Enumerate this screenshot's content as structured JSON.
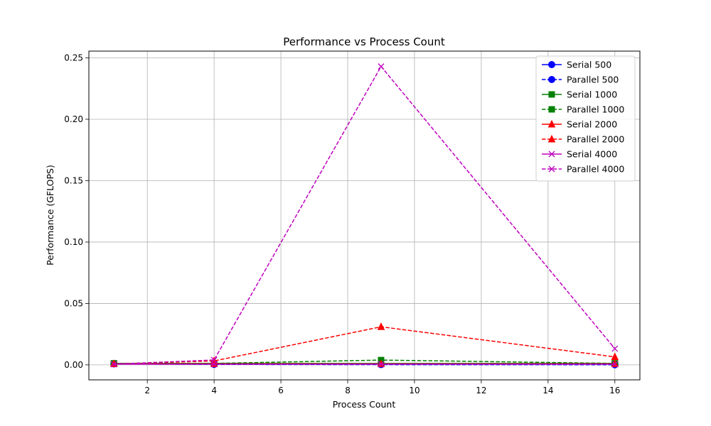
{
  "chart_data": {
    "type": "line",
    "title": "Performance vs Process Count",
    "xlabel": "Process Count",
    "ylabel": "Performance (GFLOPS)",
    "xlim": [
      0.25,
      16.75
    ],
    "ylim": [
      -0.0122,
      0.2555
    ],
    "xticks": [
      2,
      4,
      6,
      8,
      10,
      12,
      14,
      16
    ],
    "yticks": [
      0.0,
      0.05,
      0.1,
      0.15,
      0.2,
      0.25
    ],
    "ytick_labels": [
      "0.00",
      "0.05",
      "0.10",
      "0.15",
      "0.20",
      "0.25"
    ],
    "grid": true,
    "legend_position": "top-right",
    "x": [
      1,
      4,
      9,
      16
    ],
    "series": [
      {
        "name": "Serial 500",
        "color": "#0000ff",
        "line": "solid",
        "marker": "circle",
        "values": [
          0.0008,
          0.0008,
          0.0008,
          0.0008
        ]
      },
      {
        "name": "Parallel 500",
        "color": "#0000ff",
        "line": "dashed",
        "marker": "circle",
        "values": [
          0.0008,
          0.0004,
          0.0002,
          0.0001
        ]
      },
      {
        "name": "Serial 1000",
        "color": "#008000",
        "line": "solid",
        "marker": "square",
        "values": [
          0.0012,
          0.0012,
          0.0012,
          0.0012
        ]
      },
      {
        "name": "Parallel 1000",
        "color": "#008000",
        "line": "dashed",
        "marker": "square",
        "values": [
          0.0012,
          0.0012,
          0.0039,
          0.0012
        ]
      },
      {
        "name": "Serial 2000",
        "color": "#ff0000",
        "line": "solid",
        "marker": "triangle",
        "values": [
          0.0008,
          0.0008,
          0.0008,
          0.0008
        ]
      },
      {
        "name": "Parallel 2000",
        "color": "#ff0000",
        "line": "dashed",
        "marker": "triangle",
        "values": [
          0.0008,
          0.0032,
          0.031,
          0.0065
        ]
      },
      {
        "name": "Serial 4000",
        "color": "#bf00bf",
        "line": "solid",
        "marker": "x",
        "values": [
          0.0006,
          0.0006,
          0.0006,
          0.0006
        ]
      },
      {
        "name": "Parallel 4000",
        "color": "#bf00bf",
        "line": "dashed",
        "marker": "x",
        "values": [
          0.0006,
          0.004,
          0.243,
          0.0132
        ]
      }
    ]
  }
}
